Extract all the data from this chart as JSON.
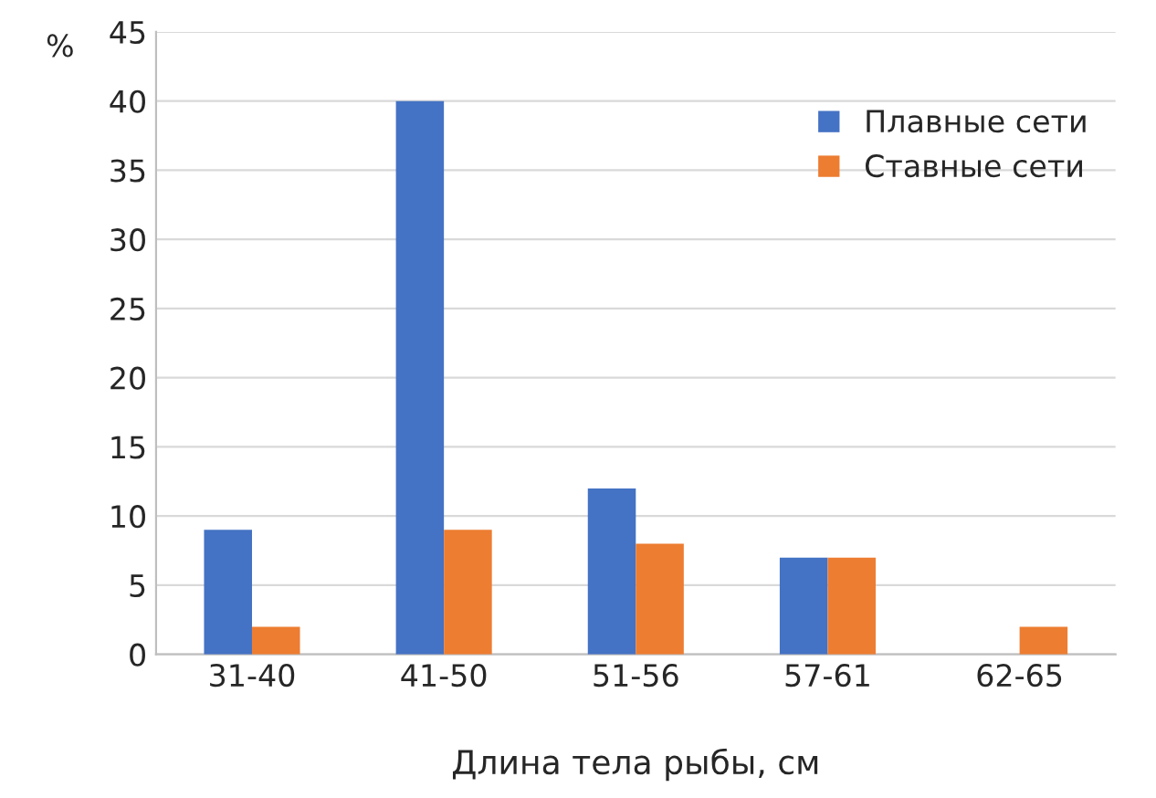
{
  "chart_data": {
    "type": "bar",
    "xlabel": "Длина тела рыбы, см",
    "ylabel": "%",
    "categories": [
      "31-40",
      "41-50",
      "51-56",
      "57-61",
      "62-65"
    ],
    "series": [
      {
        "name": "Плавные сети",
        "color": "#4472c4",
        "values": [
          9,
          40,
          12,
          7,
          null
        ]
      },
      {
        "name": "Ставные сети",
        "color": "#ed7d31",
        "values": [
          2,
          9,
          8,
          7,
          2
        ]
      }
    ],
    "ylim": [
      0,
      45
    ],
    "yticks": [
      0,
      5,
      10,
      15,
      20,
      25,
      30,
      35,
      40,
      45
    ],
    "grid": "y",
    "legend": "top right"
  }
}
